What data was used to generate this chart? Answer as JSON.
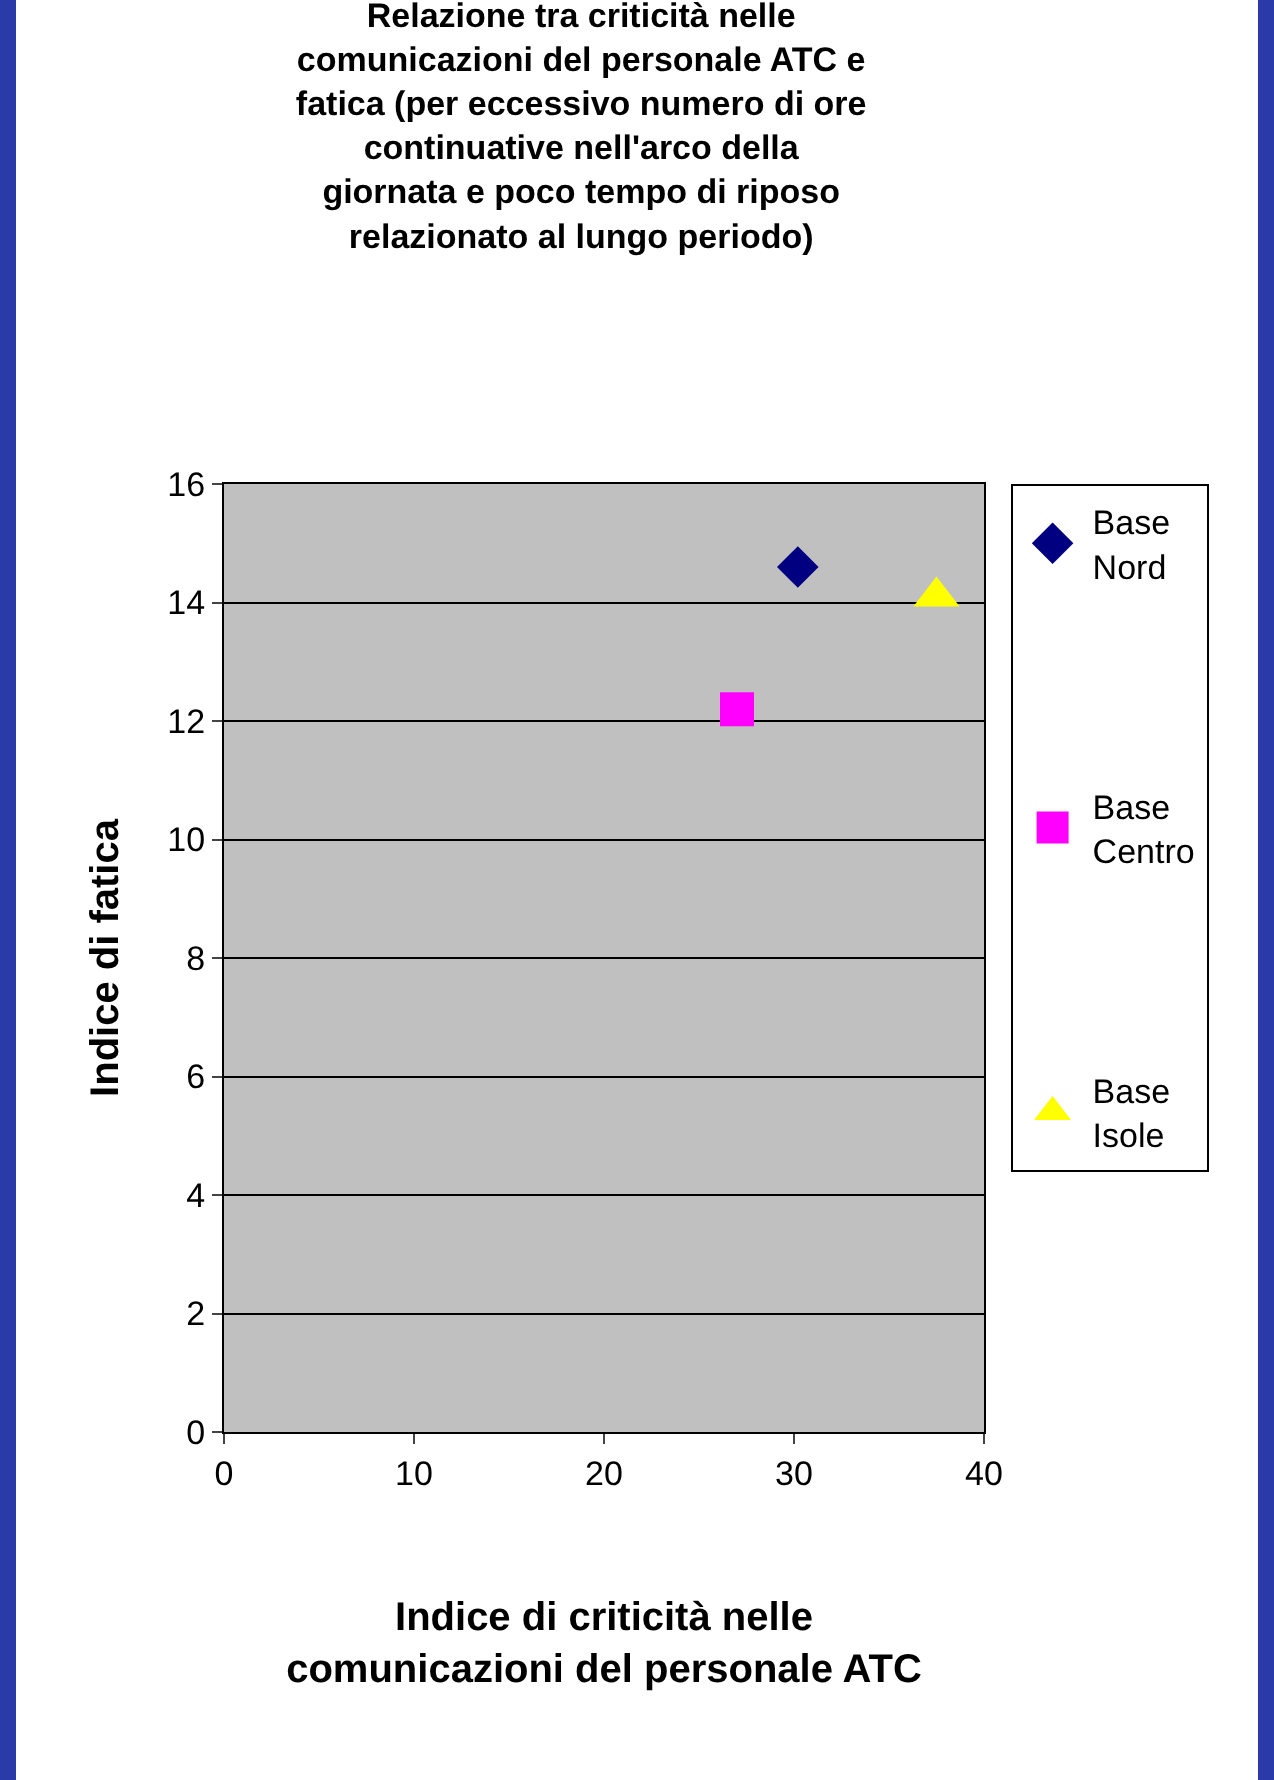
{
  "chart_data": {
    "type": "scatter",
    "title": "Relazione tra criticità nelle comunicazioni del personale ATC e fatica (per eccessivo numero di ore continuative nell'arco della giornata e poco tempo di riposo relazionato al lungo periodo)",
    "xlabel": "Indice di criticità nelle comunicazioni del personale ATC",
    "ylabel": "Indice di fatica",
    "series": [
      {
        "name": "Base Nord",
        "color": "#000080",
        "marker": "diamond",
        "x": [
          30.2
        ],
        "values": [
          14.6
        ]
      },
      {
        "name": "Base Centro",
        "color": "#ff00ff",
        "marker": "square",
        "x": [
          27
        ],
        "values": [
          12.2
        ]
      },
      {
        "name": "Base Isole",
        "color": "#ffff00",
        "marker": "triangle",
        "x": [
          37.5
        ],
        "values": [
          14.1
        ]
      }
    ],
    "xlim": [
      0,
      40
    ],
    "xticks": [
      0,
      10,
      20,
      30,
      40
    ],
    "ylim": [
      0,
      16
    ],
    "yticks": [
      0,
      2,
      4,
      6,
      8,
      10,
      12,
      14,
      16
    ],
    "grid": "y",
    "legend": "right"
  }
}
